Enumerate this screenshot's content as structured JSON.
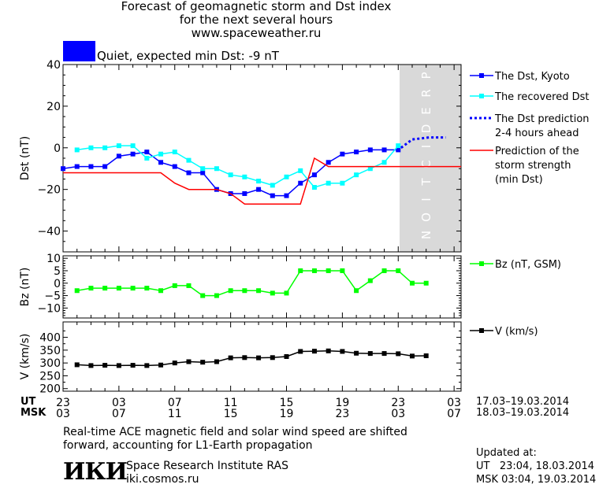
{
  "header": {
    "title_lines": [
      "Forecast of geomagnetic storm and Dst index",
      "for the next several hours",
      "www.spaceweather.ru"
    ],
    "status": {
      "text": "Quiet, expected min Dst: -9 nT",
      "color": "#0000ff"
    }
  },
  "chart_data": [
    {
      "type": "line",
      "ylabel": "Dst (nT)",
      "ylim": [
        -50,
        40
      ],
      "yticks": [
        "40",
        "20",
        "0",
        "−20",
        "−40"
      ],
      "prediction_label": "PREDICTION",
      "series": [
        {
          "name": "The Dst, Kyoto",
          "color": "#0000ff",
          "marker": "square",
          "points": [
            [
              0,
              -10
            ],
            [
              1,
              -9
            ],
            [
              2,
              -9
            ],
            [
              3,
              -9
            ],
            [
              4,
              -4
            ],
            [
              5,
              -3
            ],
            [
              6,
              -2
            ],
            [
              7,
              -7
            ],
            [
              8,
              -9
            ],
            [
              9,
              -12
            ],
            [
              10,
              -12
            ],
            [
              11,
              -20
            ],
            [
              12,
              -22
            ],
            [
              13,
              -22
            ],
            [
              14,
              -20
            ],
            [
              15,
              -23
            ],
            [
              16,
              -23
            ],
            [
              17,
              -17
            ],
            [
              18,
              -13
            ],
            [
              19,
              -7
            ],
            [
              20,
              -3
            ],
            [
              21,
              -2
            ],
            [
              22,
              -1
            ],
            [
              23,
              -1
            ],
            [
              24,
              -1
            ]
          ]
        },
        {
          "name": "The recovered Dst",
          "color": "#00ffff",
          "marker": "square",
          "points": [
            [
              1,
              -1
            ],
            [
              2,
              0
            ],
            [
              3,
              0
            ],
            [
              4,
              1
            ],
            [
              5,
              1
            ],
            [
              6,
              -5
            ],
            [
              7,
              -3
            ],
            [
              8,
              -2
            ],
            [
              9,
              -6
            ],
            [
              10,
              -10
            ],
            [
              11,
              -10
            ],
            [
              12,
              -13
            ],
            [
              13,
              -14
            ],
            [
              14,
              -16
            ],
            [
              15,
              -18
            ],
            [
              16,
              -14
            ],
            [
              17,
              -11
            ],
            [
              18,
              -19
            ],
            [
              19,
              -17
            ],
            [
              20,
              -17
            ],
            [
              21,
              -13
            ],
            [
              22,
              -10
            ],
            [
              23,
              -7
            ],
            [
              24,
              1
            ]
          ]
        },
        {
          "name": "The Dst prediction\n2-4 hours ahead",
          "color": "#0000ff",
          "dashed": true,
          "points": [
            [
              24.2,
              0
            ],
            [
              25,
              4
            ],
            [
              26.2,
              5
            ],
            [
              27.4,
              5
            ]
          ]
        },
        {
          "name": "Prediction of the\nstorm strength\n(min Dst)",
          "color": "#ff0000",
          "points": [
            [
              0,
              -12
            ],
            [
              7,
              -12
            ],
            [
              8,
              -17
            ],
            [
              9,
              -20
            ],
            [
              11,
              -20
            ],
            [
              12,
              -22
            ],
            [
              13,
              -27
            ],
            [
              17,
              -27
            ],
            [
              18,
              -5
            ],
            [
              19,
              -9
            ],
            [
              28.5,
              -9
            ]
          ]
        }
      ]
    },
    {
      "type": "line",
      "ylabel": "Bz (nT)",
      "ylim": [
        -14,
        11
      ],
      "yticks": [
        "10",
        "5",
        "0",
        "−5",
        "−10"
      ],
      "series": [
        {
          "name": "Bz (nT, GSM)",
          "color": "#00ff00",
          "marker": "square",
          "points": [
            [
              1,
              -3
            ],
            [
              2,
              -2
            ],
            [
              3,
              -2
            ],
            [
              4,
              -2
            ],
            [
              5,
              -2
            ],
            [
              6,
              -2
            ],
            [
              7,
              -3
            ],
            [
              8,
              -1
            ],
            [
              9,
              -1
            ],
            [
              10,
              -5
            ],
            [
              11,
              -5
            ],
            [
              12,
              -3
            ],
            [
              13,
              -3
            ],
            [
              14,
              -3
            ],
            [
              15,
              -4
            ],
            [
              16,
              -4
            ],
            [
              17,
              5
            ],
            [
              18,
              5
            ],
            [
              19,
              5
            ],
            [
              20,
              5
            ],
            [
              21,
              -3
            ],
            [
              22,
              1
            ],
            [
              23,
              5
            ],
            [
              24,
              5
            ],
            [
              25,
              0
            ],
            [
              26,
              0
            ]
          ]
        }
      ]
    },
    {
      "type": "line",
      "ylabel": "V (km/s)",
      "ylim": [
        190,
        460
      ],
      "yticks": [
        "400",
        "350",
        "300",
        "250",
        "200"
      ],
      "series": [
        {
          "name": "V (km/s)",
          "color": "#000000",
          "marker": "square",
          "points": [
            [
              1,
              293
            ],
            [
              2,
              290
            ],
            [
              3,
              291
            ],
            [
              4,
              290
            ],
            [
              5,
              291
            ],
            [
              6,
              290
            ],
            [
              7,
              292
            ],
            [
              8,
              300
            ],
            [
              9,
              305
            ],
            [
              10,
              303
            ],
            [
              11,
              305
            ],
            [
              12,
              320
            ],
            [
              13,
              321
            ],
            [
              14,
              320
            ],
            [
              15,
              321
            ],
            [
              16,
              325
            ],
            [
              17,
              345
            ],
            [
              18,
              346
            ],
            [
              19,
              347
            ],
            [
              20,
              345
            ],
            [
              21,
              338
            ],
            [
              22,
              337
            ],
            [
              23,
              337
            ],
            [
              24,
              336
            ],
            [
              25,
              327
            ],
            [
              26,
              328
            ]
          ]
        }
      ]
    }
  ],
  "time_axis": {
    "ut_label": "UT",
    "msk_label": "MSK",
    "ut_ticks": [
      "23",
      "03",
      "07",
      "11",
      "15",
      "19",
      "23",
      "03"
    ],
    "msk_ticks": [
      "03",
      "07",
      "11",
      "15",
      "19",
      "23",
      "03",
      "07"
    ],
    "ut_range": "17.03–19.03.2014",
    "msk_range": "18.03–19.03.2014"
  },
  "footer": {
    "note_lines": [
      "Real-time ACE magnetic field and solar wind speed are shifted",
      "forward, accounting for L1-Earth propagation"
    ],
    "logo_text": "ИКИ",
    "institute": "Space Research Institute RAS",
    "url": "iki.cosmos.ru",
    "updated_label": "Updated at:",
    "updated_ut": "UT   23:04, 18.03.2014",
    "updated_msk": "MSK 03:04, 19.03.2014"
  }
}
